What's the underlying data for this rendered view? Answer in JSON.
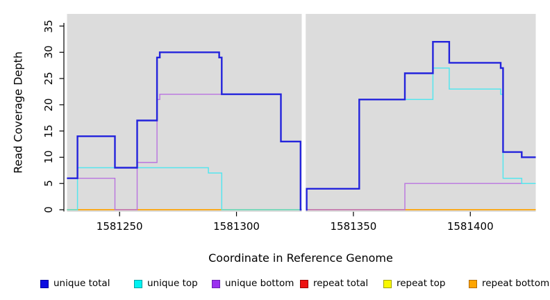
{
  "chart_data": {
    "type": "step-line",
    "title": "",
    "xlabel": "Coordinate in Reference Genome",
    "ylabel": "Read Coverage Depth",
    "xlim": [
      1581227.5,
      1581428
    ],
    "ylim": [
      0,
      35
    ],
    "grid": false,
    "plot_bg_color": "#DCDCDC",
    "axis_color": "#000000",
    "x_ticks": [
      {
        "value": 1581250,
        "label": "1581250"
      },
      {
        "value": 1581300,
        "label": "1581300"
      },
      {
        "value": 1581350,
        "label": "1581350"
      },
      {
        "value": 1581400,
        "label": "1581400"
      }
    ],
    "y_ticks": [
      {
        "value": 0,
        "label": "0"
      },
      {
        "value": 5,
        "label": "5"
      },
      {
        "value": 10,
        "label": "10"
      },
      {
        "value": 15,
        "label": "15"
      },
      {
        "value": 20,
        "label": "20"
      },
      {
        "value": 25,
        "label": "25"
      },
      {
        "value": 30,
        "label": "30"
      },
      {
        "value": 35,
        "label": "35"
      }
    ],
    "gap_region": {
      "from": 1581327.9,
      "to": 1581329.6,
      "color": "#FFFFFF"
    },
    "series": [
      {
        "name": "repeat total",
        "color": "#DC2A2A",
        "width": 1.4,
        "segments": [
          {
            "steps": [
              [
                1581227.5,
                0
              ]
            ],
            "end": 1581327.8
          },
          {
            "steps": [
              [
                1581329.7,
                0
              ]
            ],
            "end": 1581428
          }
        ]
      },
      {
        "name": "repeat top",
        "color": "#F2F200",
        "width": 1.4,
        "segments": [
          {
            "steps": [
              [
                1581227.5,
                0
              ]
            ],
            "end": 1581327.8
          },
          {
            "steps": [
              [
                1581329.7,
                0
              ]
            ],
            "end": 1581428
          }
        ]
      },
      {
        "name": "repeat bottom",
        "color": "#FFA513",
        "width": 1.6,
        "segments": [
          {
            "steps": [
              [
                1581227.5,
                0
              ]
            ],
            "end": 1581327.8
          },
          {
            "steps": [
              [
                1581329.7,
                0
              ]
            ],
            "end": 1581428
          }
        ]
      },
      {
        "name": "unique bottom",
        "color": "#B973DF",
        "width": 1.4,
        "segments": [
          {
            "steps": [
              [
                1581227.5,
                6
              ],
              [
                1581248,
                0
              ],
              [
                1581257.5,
                9
              ],
              [
                1581266,
                21
              ],
              [
                1581267.2,
                22
              ],
              [
                1581319,
                13
              ],
              [
                1581327.4,
                0
              ]
            ],
            "end": 1581327.8
          },
          {
            "steps": [
              [
                1581329.7,
                0
              ],
              [
                1581372,
                5
              ]
            ],
            "end": 1581428
          }
        ]
      },
      {
        "name": "unique top",
        "color": "#55E6EE",
        "width": 1.5,
        "segments": [
          {
            "steps": [
              [
                1581227.5,
                0
              ],
              [
                1581232,
                8
              ],
              [
                1581288,
                7
              ],
              [
                1581293.7,
                0
              ]
            ],
            "end": 1581327.8
          },
          {
            "steps": [
              [
                1581329.7,
                0
              ],
              [
                1581330,
                4
              ],
              [
                1581352.5,
                21
              ],
              [
                1581384,
                27
              ],
              [
                1581391,
                23
              ],
              [
                1581413,
                22
              ],
              [
                1581414,
                6
              ],
              [
                1581422,
                5
              ]
            ],
            "end": 1581428
          }
        ]
      },
      {
        "name": "unique total",
        "color": "#2323DC",
        "width": 2.4,
        "segments": [
          {
            "steps": [
              [
                1581227.5,
                6
              ],
              [
                1581232,
                14
              ],
              [
                1581248,
                8
              ],
              [
                1581257.5,
                17
              ],
              [
                1581266,
                29
              ],
              [
                1581267.2,
                30
              ],
              [
                1581292.6,
                29
              ],
              [
                1581293.7,
                22
              ],
              [
                1581319,
                13
              ],
              [
                1581327.4,
                0
              ]
            ],
            "end": 1581327.8
          },
          {
            "steps": [
              [
                1581329.7,
                0
              ],
              [
                1581330,
                4
              ],
              [
                1581352.5,
                21
              ],
              [
                1581372,
                26
              ],
              [
                1581384,
                32
              ],
              [
                1581391,
                28
              ],
              [
                1581413,
                27
              ],
              [
                1581414,
                11
              ],
              [
                1581422,
                10
              ]
            ],
            "end": 1581428
          }
        ]
      }
    ],
    "legend": [
      {
        "label": "unique total",
        "fill": "#0D0DE0",
        "border": "#0000A0"
      },
      {
        "label": "unique top",
        "fill": "#00F2F2",
        "border": "#00A0A0"
      },
      {
        "label": "unique bottom",
        "fill": "#9B30F0",
        "border": "#6A1FB0"
      },
      {
        "label": "repeat total",
        "fill": "#EE1111",
        "border": "#990000"
      },
      {
        "label": "repeat top",
        "fill": "#F8F800",
        "border": "#A0A000"
      },
      {
        "label": "repeat bottom",
        "fill": "#FFA500",
        "border": "#B36B00"
      }
    ]
  }
}
